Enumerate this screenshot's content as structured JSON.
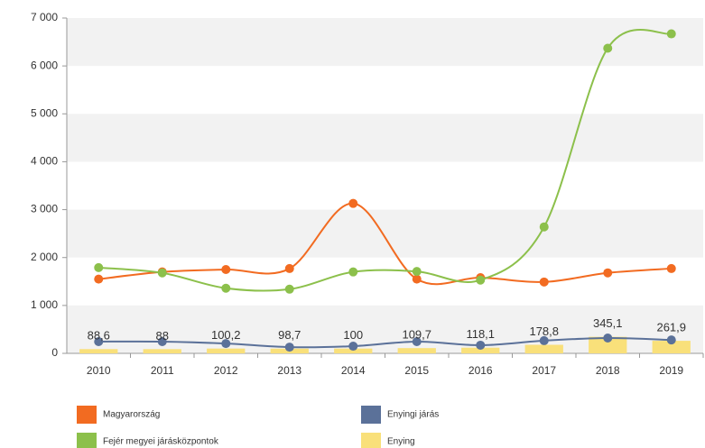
{
  "chart_data": {
    "type": "line",
    "categories": [
      "2010",
      "2011",
      "2012",
      "2013",
      "2014",
      "2015",
      "2016",
      "2017",
      "2018",
      "2019"
    ],
    "series": [
      {
        "name": "Magyarország",
        "color": "#f26b21",
        "kind": "line",
        "values": [
          1550,
          1700,
          1750,
          1770,
          3130,
          1550,
          1580,
          1490,
          1680,
          1770
        ]
      },
      {
        "name": "Enyingi járás",
        "color": "#5b7199",
        "kind": "line",
        "values": [
          245,
          245,
          205,
          130,
          150,
          245,
          170,
          265,
          320,
          280
        ]
      },
      {
        "name": "Fejér megyei járásközpontok",
        "color": "#8cc04b",
        "kind": "line",
        "values": [
          1790,
          1680,
          1360,
          1340,
          1700,
          1710,
          1530,
          2640,
          6370,
          6670
        ]
      },
      {
        "name": "Enying",
        "color": "#f9e07a",
        "kind": "bar",
        "values": [
          88.6,
          88,
          100.2,
          98.7,
          100,
          109.7,
          118.1,
          178.8,
          345.1,
          261.9
        ],
        "value_labels": [
          "88,6",
          "88",
          "100,2",
          "98,7",
          "100",
          "109,7",
          "118,1",
          "178,8",
          "345,1",
          "261,9"
        ]
      }
    ],
    "ylim": [
      0,
      7000
    ],
    "yticks": [
      0,
      {
        "value": 1000,
        "label": "1 000"
      },
      {
        "value": 2000,
        "label": "2 000"
      },
      {
        "value": 3000,
        "label": "3 000"
      },
      {
        "value": 4000,
        "label": "4 000"
      },
      {
        "value": 5000,
        "label": "5 000"
      },
      {
        "value": 6000,
        "label": "6 000"
      },
      {
        "value": 7000,
        "label": "7 000"
      }
    ],
    "grid": true
  }
}
